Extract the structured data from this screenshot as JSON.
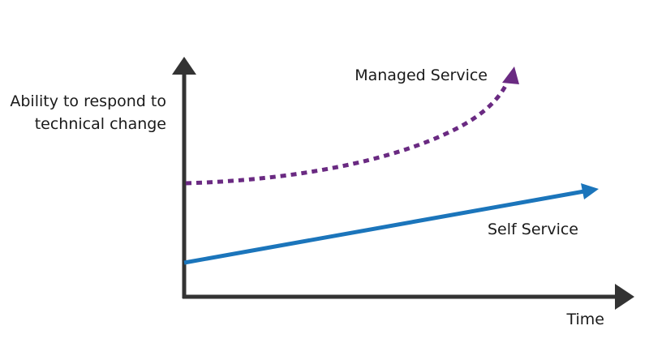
{
  "diagram": {
    "y_axis_label_line1": "Ability to respond to",
    "y_axis_label_line2": "technical change",
    "x_axis_label": "Time",
    "managed_service_label": "Managed Service",
    "self_service_label": "Self Service"
  },
  "colors": {
    "axis": "#333333",
    "managed_service": "#6a2a82",
    "self_service": "#1b75bb",
    "text": "#1a1a1a"
  }
}
